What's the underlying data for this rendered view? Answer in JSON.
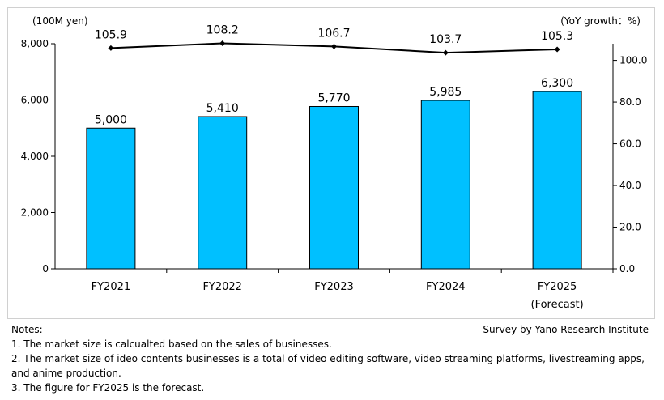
{
  "chart_data": {
    "type": "bar",
    "categories": [
      "FY2021",
      "FY2022",
      "FY2023",
      "FY2024",
      "FY2025"
    ],
    "category_sublabels": [
      "",
      "",
      "",
      "",
      "(Forecast)"
    ],
    "series": [
      {
        "name": "",
        "type": "bar",
        "axis": "left",
        "values": [
          5000,
          5410,
          5770,
          5985,
          6300
        ],
        "labels": [
          "5,000",
          "5,410",
          "5,770",
          "5,985",
          "6,300"
        ]
      },
      {
        "name": "",
        "type": "line",
        "axis": "right",
        "values": [
          105.9,
          108.2,
          106.7,
          103.7,
          105.3
        ],
        "labels": [
          "105.9",
          "108.2",
          "106.7",
          "103.7",
          "105.3"
        ]
      }
    ],
    "ylabel_left": "(100M yen)",
    "ylabel_right": "(YoY growth：%)",
    "ylim_left": [
      0,
      8000
    ],
    "yticks_left": [
      "0",
      "2,000",
      "4,000",
      "6,000",
      "8,000"
    ],
    "ylim_right": [
      0,
      108
    ],
    "yticks_right": [
      "0.0",
      "20.0",
      "40.0",
      "60.0",
      "80.0",
      "100.0"
    ],
    "bar_color": "#00c0ff",
    "line_color": "#000000",
    "grid": false
  },
  "notes": {
    "heading": "Notes:",
    "lines": [
      "1. The market size is calcualted based on the sales of businesses.",
      "2.  The market size of ideo contents businesses is a total of video editing software, video streaming platforms, livestreaming apps,",
      "     and anime production.",
      "3.  The figure for FY2025 is the forecast."
    ]
  },
  "source": "Survey by Yano Research Institute"
}
